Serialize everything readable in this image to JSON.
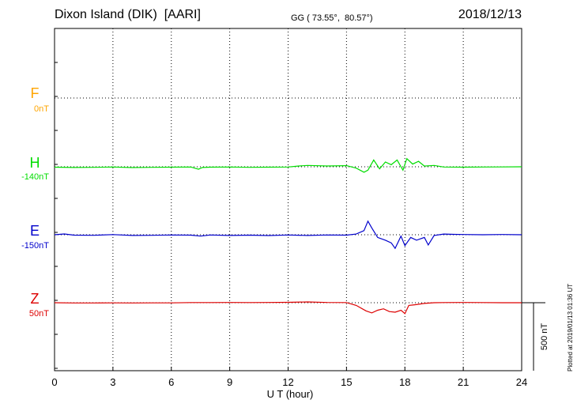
{
  "header": {
    "title": "Dixon Island (DIK)  [AARI]",
    "subtitle": "GG ( 73.55°,  80.57°)",
    "date": "2018/12/13",
    "plotted": "Plotted at 2019/01/13 01:36 UT"
  },
  "chart_data": {
    "type": "line",
    "xlabel": "U T (hour)",
    "xlim": [
      0,
      24
    ],
    "xticks": [
      "0",
      "3",
      "6",
      "9",
      "12",
      "15",
      "18",
      "21",
      "24"
    ],
    "scale_bar": {
      "label": "500 nT",
      "value_nT": 500
    },
    "grid": true,
    "series": [
      {
        "name": "F",
        "offset_label": "0nT",
        "color": "#ffa500",
        "visible": false,
        "x": [],
        "y": []
      },
      {
        "name": "H",
        "offset_label": "-140nT",
        "color": "#00dd00",
        "x": [
          0,
          1,
          2,
          3,
          4,
          5,
          6,
          7,
          7.4,
          7.6,
          8,
          9,
          10,
          11,
          12,
          12.5,
          13,
          14,
          15,
          15.5,
          15.9,
          16.1,
          16.4,
          16.7,
          17,
          17.3,
          17.6,
          17.9,
          18.1,
          18.4,
          18.7,
          19,
          19.5,
          20,
          21,
          22,
          23,
          24
        ],
        "y": [
          -3,
          -5,
          -4,
          -2,
          -6,
          -4,
          -3,
          -2,
          -18,
          -5,
          -3,
          -2,
          -4,
          -3,
          -2,
          5,
          10,
          6,
          8,
          -10,
          -40,
          -25,
          50,
          -15,
          35,
          15,
          50,
          -25,
          60,
          20,
          40,
          5,
          10,
          -2,
          -3,
          -2,
          -1,
          0
        ]
      },
      {
        "name": "E",
        "offset_label": "-150nT",
        "color": "#0000cc",
        "x": [
          0,
          0.5,
          1,
          2,
          3,
          4,
          5,
          6,
          7,
          7.5,
          8,
          9,
          10,
          11,
          12,
          13,
          14,
          15,
          15.5,
          15.9,
          16.1,
          16.3,
          16.6,
          17,
          17.3,
          17.5,
          17.8,
          18,
          18.3,
          18.6,
          19,
          19.2,
          19.5,
          20,
          20.5,
          21,
          22,
          23,
          24
        ],
        "y": [
          0,
          6,
          -3,
          -4,
          1,
          -5,
          -4,
          -2,
          -3,
          -10,
          -2,
          -5,
          -3,
          -6,
          -2,
          -5,
          -2,
          -3,
          5,
          30,
          100,
          50,
          -20,
          -40,
          -60,
          -100,
          -10,
          -80,
          -20,
          -40,
          -20,
          -75,
          -5,
          5,
          3,
          2,
          0,
          2,
          0
        ]
      },
      {
        "name": "Z",
        "offset_label": "50nT",
        "color": "#dd0000",
        "x": [
          0,
          1,
          2,
          3,
          4,
          5,
          6,
          7,
          8,
          9,
          10,
          11,
          12,
          13,
          14,
          15,
          15.5,
          16,
          16.3,
          16.6,
          16.9,
          17.2,
          17.5,
          17.8,
          18,
          18.2,
          18.5,
          19,
          19.5,
          20,
          21,
          22,
          23,
          24
        ],
        "y": [
          0,
          -2,
          -2,
          -1,
          -2,
          -1,
          -1,
          1,
          1,
          2,
          1,
          2,
          3,
          6,
          2,
          1,
          -20,
          -60,
          -75,
          -55,
          -45,
          -65,
          -70,
          -55,
          -80,
          -20,
          -15,
          -5,
          0,
          1,
          2,
          1,
          0,
          0
        ]
      }
    ]
  }
}
